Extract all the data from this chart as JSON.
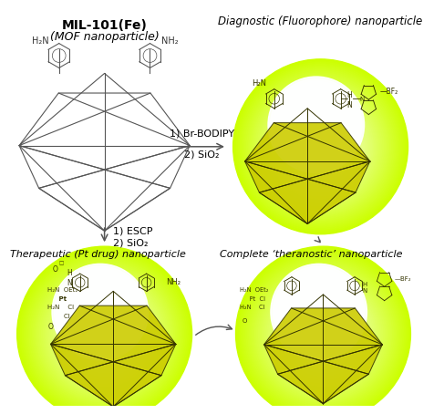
{
  "title_top": "MIL-101(Fe)",
  "subtitle_top": "(MOF nanoparticle)",
  "label_top_right": "Diagnostic (Fluorophore) nanoparticle",
  "label_bottom_left": "Therapeutic (Pt drug) nanoparticle",
  "label_bottom_right": "Complete ‘theranostic’ nanoparticle",
  "arrow1_label_a": "1) Br-BODIPY",
  "arrow1_label_b": "2) SiO₂",
  "arrow2_label_a": "1) ESCP",
  "arrow2_label_b": "2) SiO₂",
  "sphere_yellow": "#ccff00",
  "sphere_mid": "#e8ff60",
  "sphere_white": "#ffffff",
  "bg_color": "#ffffff",
  "crystal_dark": "#333333",
  "crystal_yellow_fill": "#aaaa00",
  "text_color": "#000000",
  "fig_width": 4.87,
  "fig_height": 4.54,
  "dpi": 100
}
